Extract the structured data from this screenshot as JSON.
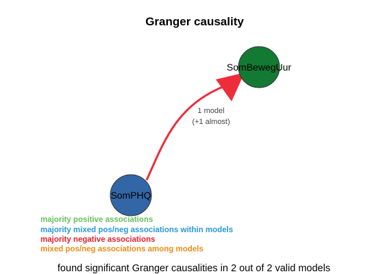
{
  "title": "Granger causality",
  "nodes": {
    "source": {
      "label": "SomPHQ",
      "color": "#3366a6"
    },
    "target": {
      "label": "SomBewegUur",
      "color": "#137a33"
    }
  },
  "edge": {
    "color": "#ee2d3b",
    "label_line1": "1 model",
    "label_line2": "(+1 almost)"
  },
  "legend": [
    {
      "label": "majority positive associations",
      "color": "#66c15a"
    },
    {
      "label": "majority mixed pos/neg associations within models",
      "color": "#2a98d8"
    },
    {
      "label": "majority negative associations",
      "color": "#e5202e"
    },
    {
      "label": "mixed pos/neg associations among models",
      "color": "#e88d1a"
    }
  ],
  "footer": "found significant Granger causalities in 2 out of 2 valid models"
}
